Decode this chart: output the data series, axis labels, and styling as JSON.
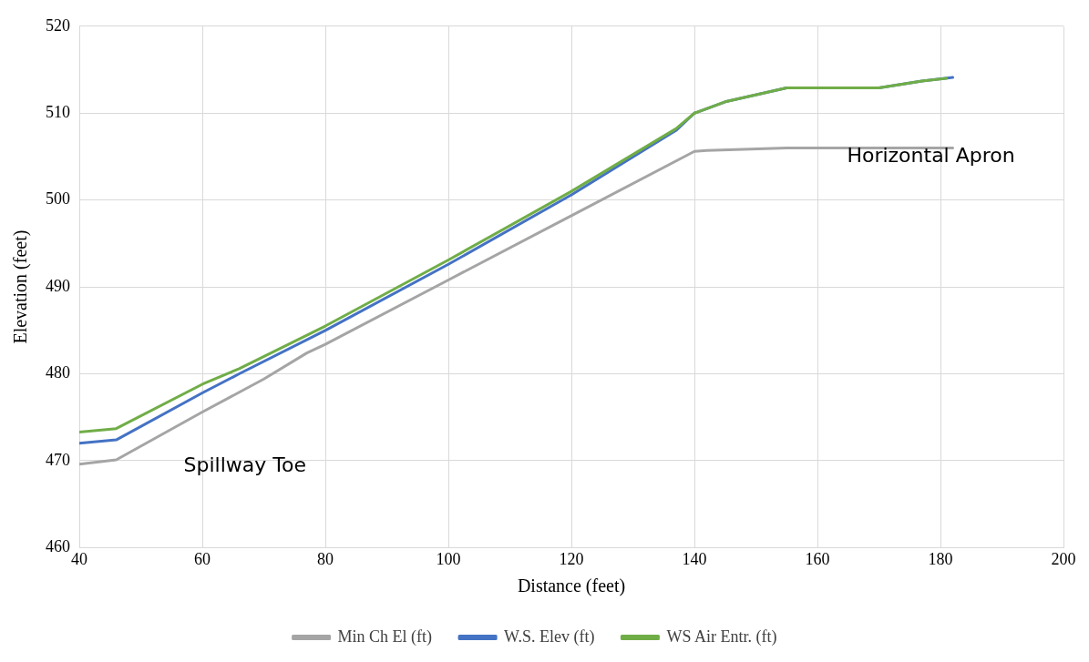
{
  "chart_data": {
    "type": "line",
    "xlabel": "Distance (feet)",
    "ylabel": "Elevation (feet)",
    "xlim": [
      40,
      200
    ],
    "xticks": [
      40,
      60,
      80,
      100,
      120,
      140,
      160,
      180,
      200
    ],
    "ylim": [
      460,
      520
    ],
    "yticks": [
      460,
      470,
      480,
      490,
      500,
      510,
      520
    ],
    "grid": true,
    "legend": "bottom",
    "marker": "none",
    "line_style": "solid",
    "series": [
      {
        "name": "Min Ch El (ft)",
        "color": "#a5a5a5",
        "x": [
          40,
          46,
          60,
          70,
          77,
          80,
          100,
          120,
          140,
          142,
          155,
          182
        ],
        "values": [
          469.6,
          470.1,
          475.6,
          479.4,
          482.4,
          483.4,
          490.8,
          498.2,
          505.6,
          505.7,
          506.0,
          506.0
        ]
      },
      {
        "name": "W.S. Elev (ft)",
        "color": "#4472c4",
        "x": [
          40,
          46,
          60,
          66,
          80,
          100,
          120,
          137,
          140,
          145,
          155,
          170,
          177,
          182
        ],
        "values": [
          472.0,
          472.4,
          477.8,
          480.0,
          485.0,
          492.6,
          500.6,
          508.0,
          510.0,
          511.3,
          512.9,
          512.9,
          513.7,
          514.1
        ]
      },
      {
        "name": "WS Air Entr. (ft)",
        "color": "#70ad47",
        "x": [
          40,
          46,
          60,
          66,
          80,
          100,
          120,
          137,
          140,
          145,
          155,
          170,
          177,
          181
        ],
        "values": [
          473.3,
          473.7,
          478.8,
          480.6,
          485.5,
          493.1,
          501.0,
          508.2,
          510.0,
          511.3,
          512.9,
          512.9,
          513.7,
          514.0
        ]
      }
    ],
    "annotations": [
      "Spillway Toe",
      "Horizontal Apron"
    ]
  }
}
